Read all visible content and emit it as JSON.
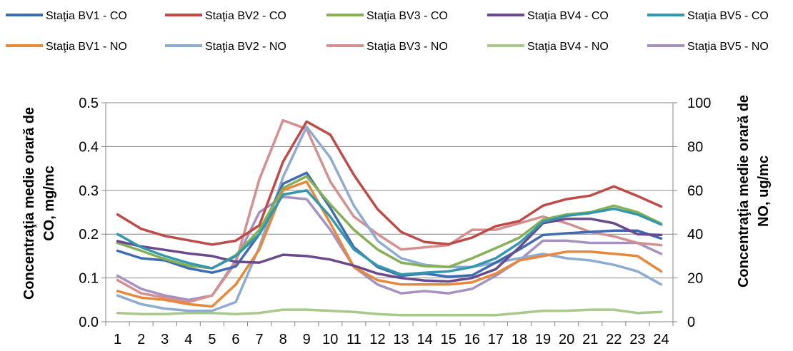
{
  "chart_data": {
    "type": "line",
    "title": "",
    "x": [
      1,
      2,
      3,
      4,
      5,
      6,
      7,
      8,
      9,
      10,
      11,
      12,
      13,
      14,
      15,
      16,
      17,
      18,
      19,
      20,
      21,
      22,
      23,
      24
    ],
    "x_ticks": [
      "1",
      "2",
      "3",
      "4",
      "5",
      "6",
      "7",
      "8",
      "9",
      "10",
      "11",
      "12",
      "13",
      "14",
      "15",
      "16",
      "17",
      "18",
      "19",
      "20",
      "21",
      "22",
      "23",
      "24"
    ],
    "y_left": {
      "label": "Concentraţia medie orară de CO, mg/mc",
      "range": [
        0,
        0.5
      ],
      "ticks": [
        "0.0",
        "0.1",
        "0.2",
        "0.3",
        "0.4",
        "0.5"
      ]
    },
    "y_right": {
      "label": "Concentraţia medie orară de NO, ug/mc",
      "range": [
        0,
        100
      ],
      "ticks": [
        "0",
        "20",
        "40",
        "60",
        "80",
        "100"
      ]
    },
    "grid": "horizontal",
    "legend_position": "top",
    "series": [
      {
        "name": "Staţia BV1 - CO",
        "axis": "left",
        "color": "#3f6cb0",
        "values": [
          0.162,
          0.145,
          0.14,
          0.122,
          0.112,
          0.126,
          0.2,
          0.315,
          0.34,
          0.26,
          0.17,
          0.125,
          0.105,
          0.11,
          0.103,
          0.106,
          0.135,
          0.165,
          0.198,
          0.202,
          0.205,
          0.208,
          0.208,
          0.19
        ]
      },
      {
        "name": "Staţia BV2 - CO",
        "axis": "left",
        "color": "#be4b48",
        "values": [
          0.245,
          0.212,
          0.196,
          0.186,
          0.176,
          0.185,
          0.22,
          0.365,
          0.457,
          0.427,
          0.335,
          0.257,
          0.205,
          0.182,
          0.177,
          0.192,
          0.218,
          0.23,
          0.265,
          0.28,
          0.288,
          0.309,
          0.287,
          0.263
        ]
      },
      {
        "name": "Staţia BV3 - CO",
        "axis": "left",
        "color": "#86b055",
        "values": [
          0.18,
          0.162,
          0.143,
          0.128,
          0.122,
          0.152,
          0.21,
          0.305,
          0.332,
          0.268,
          0.21,
          0.165,
          0.135,
          0.127,
          0.125,
          0.145,
          0.168,
          0.192,
          0.233,
          0.245,
          0.25,
          0.265,
          0.25,
          0.224
        ]
      },
      {
        "name": "Staţia BV4 - CO",
        "axis": "left",
        "color": "#6a4a8c",
        "values": [
          0.184,
          0.172,
          0.164,
          0.156,
          0.15,
          0.137,
          0.135,
          0.153,
          0.15,
          0.142,
          0.128,
          0.11,
          0.1,
          0.094,
          0.092,
          0.1,
          0.12,
          0.17,
          0.225,
          0.235,
          0.235,
          0.225,
          0.2,
          0.198
        ]
      },
      {
        "name": "Staţia BV5 - CO",
        "axis": "left",
        "color": "#3398ad",
        "values": [
          0.2,
          0.17,
          0.15,
          0.134,
          0.122,
          0.15,
          0.2,
          0.29,
          0.3,
          0.24,
          0.165,
          0.128,
          0.108,
          0.112,
          0.115,
          0.125,
          0.145,
          0.18,
          0.228,
          0.242,
          0.248,
          0.258,
          0.245,
          0.222
        ]
      },
      {
        "name": "Staţia BV1 - NO",
        "axis": "right",
        "color": "#e8883a",
        "values": [
          14,
          11,
          10,
          8,
          7,
          17,
          33,
          60,
          64,
          45,
          25,
          19,
          17,
          17,
          17,
          18,
          22,
          28,
          30,
          32,
          32,
          31,
          30,
          23
        ]
      },
      {
        "name": "Staţia BV2 - NO",
        "axis": "right",
        "color": "#8eabd2",
        "values": [
          12,
          8,
          6,
          5,
          5,
          9,
          34,
          66,
          89,
          75,
          53,
          37,
          29,
          26,
          25,
          25,
          27,
          29,
          31,
          29,
          28,
          26,
          23,
          17
        ]
      },
      {
        "name": "Staţia BV3 - NO",
        "axis": "right",
        "color": "#d49090",
        "values": [
          19,
          13,
          11,
          9,
          12,
          27,
          65,
          92,
          88,
          64,
          48,
          40,
          33,
          34,
          35,
          42,
          42,
          45,
          48,
          45,
          41,
          39,
          36,
          35
        ]
      },
      {
        "name": "Staţia BV4 - NO",
        "axis": "right",
        "color": "#a7c98a",
        "values": [
          4,
          3.5,
          3.5,
          4,
          4,
          3.5,
          4,
          5.5,
          5.5,
          5,
          4.5,
          3.5,
          3,
          3,
          3,
          3,
          3,
          4,
          5,
          5,
          5.5,
          5.5,
          4,
          4.5
        ]
      },
      {
        "name": "Staţia BV5 - NO",
        "axis": "right",
        "color": "#a592c0",
        "values": [
          21,
          15,
          12,
          10,
          12,
          28,
          50,
          57,
          56,
          42,
          25,
          17,
          13,
          14,
          13,
          15,
          21,
          28,
          37,
          37,
          36,
          36,
          36,
          31
        ]
      }
    ]
  }
}
